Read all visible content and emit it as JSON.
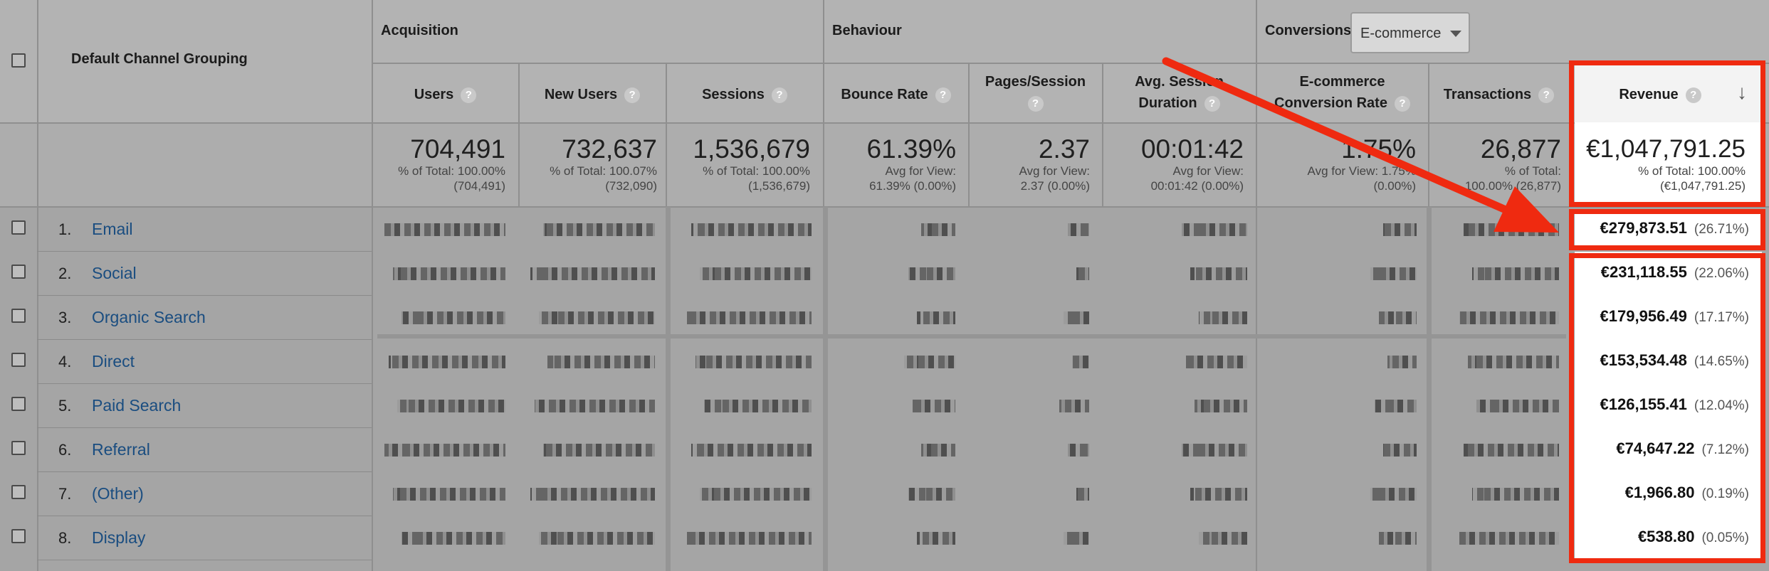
{
  "header": {
    "channel_column": "Default Channel Grouping",
    "groups": {
      "acquisition": "Acquisition",
      "behaviour": "Behaviour",
      "conversions": "Conversions"
    },
    "conversion_select": "E-commerce",
    "help_glyph": "?",
    "sort_glyph": "↓",
    "columns": {
      "users": "Users",
      "new_users": "New Users",
      "sessions": "Sessions",
      "bounce_rate": "Bounce Rate",
      "pages_l1": "Pages/Session",
      "duration_l1": "Avg. Session",
      "duration_l2": "Duration",
      "conv_l1": "E-commerce",
      "conv_l2": "Conversion Rate",
      "transactions": "Transactions",
      "revenue": "Revenue"
    }
  },
  "totals": {
    "users": {
      "value": "704,491",
      "l1": "% of Total: 100.00%",
      "l2": "(704,491)"
    },
    "new_users": {
      "value": "732,637",
      "l1": "% of Total: 100.07%",
      "l2": "(732,090)"
    },
    "sessions": {
      "value": "1,536,679",
      "l1": "% of Total: 100.00%",
      "l2": "(1,536,679)"
    },
    "bounce_rate": {
      "value": "61.39%",
      "l1": "Avg for View:",
      "l2": "61.39% (0.00%)"
    },
    "pages": {
      "value": "2.37",
      "l1": "Avg for View:",
      "l2": "2.37 (0.00%)"
    },
    "duration": {
      "value": "00:01:42",
      "l1": "Avg for View:",
      "l2": "00:01:42 (0.00%)"
    },
    "conversion": {
      "value": "1.75%",
      "l1": "Avg for View: 1.75%",
      "l2": "(0.00%)"
    },
    "transactions": {
      "value": "26,877",
      "l1": "% of Total:",
      "l2": "100.00% (26,877)"
    },
    "revenue": {
      "value": "€1,047,791.25",
      "l1": "% of Total: 100.00%",
      "l2": "(€1,047,791.25)"
    }
  },
  "rows": [
    {
      "index": "1.",
      "channel": "Email",
      "revenue": "€279,873.51",
      "pct": "(26.71%)"
    },
    {
      "index": "2.",
      "channel": "Social",
      "revenue": "€231,118.55",
      "pct": "(22.06%)"
    },
    {
      "index": "3.",
      "channel": "Organic Search",
      "revenue": "€179,956.49",
      "pct": "(17.17%)"
    },
    {
      "index": "4.",
      "channel": "Direct",
      "revenue": "€153,534.48",
      "pct": "(14.65%)"
    },
    {
      "index": "5.",
      "channel": "Paid Search",
      "revenue": "€126,155.41",
      "pct": "(12.04%)"
    },
    {
      "index": "6.",
      "channel": "Referral",
      "revenue": "€74,647.22",
      "pct": "(7.12%)"
    },
    {
      "index": "7.",
      "channel": "(Other)",
      "revenue": "€1,966.80",
      "pct": "(0.19%)"
    },
    {
      "index": "8.",
      "channel": "Display",
      "revenue": "€538.80",
      "pct": "(0.05%)"
    }
  ],
  "colors": {
    "highlight": "#ef2a10",
    "link": "#1a4d80",
    "overlay": "#a5a5a5"
  }
}
